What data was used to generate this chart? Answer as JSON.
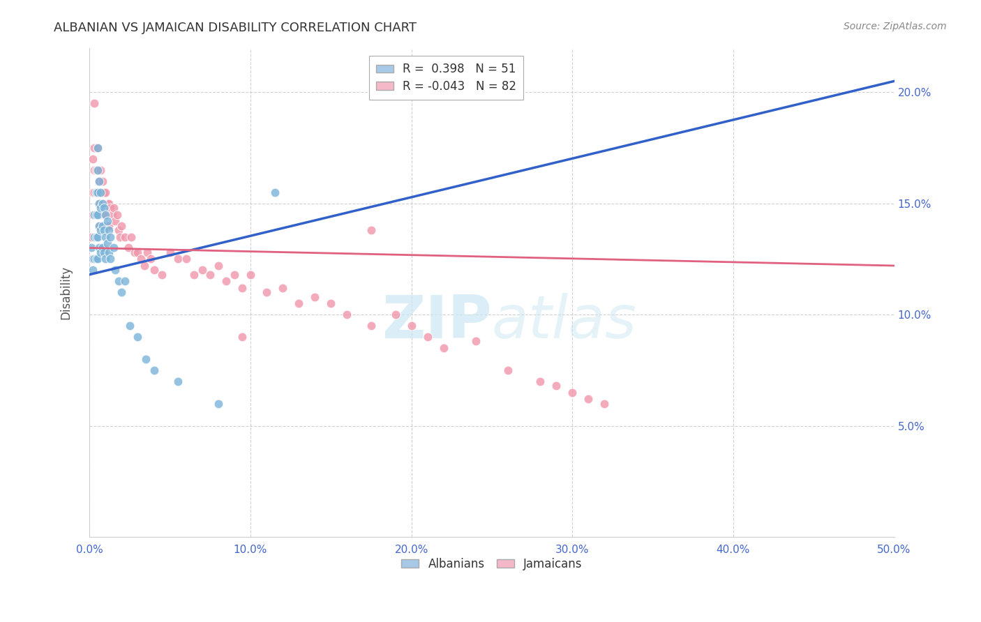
{
  "title": "ALBANIAN VS JAMAICAN DISABILITY CORRELATION CHART",
  "source": "Source: ZipAtlas.com",
  "ylabel": "Disability",
  "xmin": 0.0,
  "xmax": 0.5,
  "ymin": 0.0,
  "ymax": 0.22,
  "xtick_positions": [
    0.0,
    0.1,
    0.2,
    0.3,
    0.4,
    0.5
  ],
  "xtick_labels": [
    "0.0%",
    "10.0%",
    "20.0%",
    "30.0%",
    "40.0%",
    "50.0%"
  ],
  "ytick_positions": [
    0.05,
    0.1,
    0.15,
    0.2
  ],
  "ytick_labels": [
    "5.0%",
    "10.0%",
    "15.0%",
    "20.0%"
  ],
  "albanian_color": "#7ab3d9",
  "jamaican_color": "#f096aa",
  "trendline_albanian_color": "#3060c8",
  "trendline_jamaican_color": "#e06080",
  "legend_alb_color": "#a8c8e8",
  "legend_jam_color": "#f4b8c8",
  "watermark_color": "#cce8f4",
  "background_color": "#ffffff",
  "grid_color": "#cccccc",
  "albanian_x": [
    0.001,
    0.002,
    0.002,
    0.003,
    0.003,
    0.003,
    0.004,
    0.004,
    0.004,
    0.004,
    0.005,
    0.005,
    0.005,
    0.005,
    0.005,
    0.005,
    0.006,
    0.006,
    0.006,
    0.006,
    0.007,
    0.007,
    0.007,
    0.007,
    0.008,
    0.008,
    0.008,
    0.009,
    0.009,
    0.009,
    0.01,
    0.01,
    0.01,
    0.011,
    0.011,
    0.012,
    0.012,
    0.013,
    0.013,
    0.015,
    0.016,
    0.018,
    0.02,
    0.022,
    0.025,
    0.03,
    0.035,
    0.04,
    0.055,
    0.08,
    0.115
  ],
  "albanian_y": [
    0.13,
    0.125,
    0.12,
    0.145,
    0.135,
    0.125,
    0.155,
    0.145,
    0.135,
    0.125,
    0.175,
    0.165,
    0.155,
    0.145,
    0.135,
    0.125,
    0.16,
    0.15,
    0.14,
    0.13,
    0.155,
    0.148,
    0.138,
    0.128,
    0.15,
    0.14,
    0.13,
    0.148,
    0.138,
    0.128,
    0.145,
    0.135,
    0.125,
    0.142,
    0.132,
    0.138,
    0.128,
    0.135,
    0.125,
    0.13,
    0.12,
    0.115,
    0.11,
    0.115,
    0.095,
    0.09,
    0.08,
    0.075,
    0.07,
    0.06,
    0.155
  ],
  "jamaican_x": [
    0.001,
    0.001,
    0.002,
    0.002,
    0.002,
    0.003,
    0.003,
    0.003,
    0.003,
    0.004,
    0.004,
    0.004,
    0.005,
    0.005,
    0.005,
    0.005,
    0.006,
    0.006,
    0.006,
    0.007,
    0.007,
    0.007,
    0.008,
    0.008,
    0.009,
    0.009,
    0.01,
    0.01,
    0.011,
    0.011,
    0.012,
    0.012,
    0.013,
    0.014,
    0.015,
    0.016,
    0.017,
    0.018,
    0.019,
    0.02,
    0.022,
    0.024,
    0.026,
    0.028,
    0.03,
    0.032,
    0.034,
    0.036,
    0.038,
    0.04,
    0.045,
    0.05,
    0.055,
    0.06,
    0.065,
    0.07,
    0.075,
    0.08,
    0.085,
    0.09,
    0.095,
    0.1,
    0.11,
    0.12,
    0.13,
    0.14,
    0.15,
    0.16,
    0.175,
    0.19,
    0.2,
    0.21,
    0.22,
    0.24,
    0.26,
    0.28,
    0.29,
    0.3,
    0.31,
    0.32,
    0.175,
    0.095
  ],
  "jamaican_y": [
    0.135,
    0.125,
    0.17,
    0.155,
    0.145,
    0.195,
    0.175,
    0.165,
    0.155,
    0.165,
    0.155,
    0.145,
    0.175,
    0.165,
    0.155,
    0.145,
    0.16,
    0.15,
    0.14,
    0.165,
    0.155,
    0.145,
    0.16,
    0.15,
    0.155,
    0.145,
    0.155,
    0.145,
    0.15,
    0.14,
    0.15,
    0.14,
    0.148,
    0.145,
    0.148,
    0.142,
    0.145,
    0.138,
    0.135,
    0.14,
    0.135,
    0.13,
    0.135,
    0.128,
    0.128,
    0.125,
    0.122,
    0.128,
    0.125,
    0.12,
    0.118,
    0.128,
    0.125,
    0.125,
    0.118,
    0.12,
    0.118,
    0.122,
    0.115,
    0.118,
    0.112,
    0.118,
    0.11,
    0.112,
    0.105,
    0.108,
    0.105,
    0.1,
    0.095,
    0.1,
    0.095,
    0.09,
    0.085,
    0.088,
    0.075,
    0.07,
    0.068,
    0.065,
    0.062,
    0.06,
    0.138,
    0.09
  ]
}
